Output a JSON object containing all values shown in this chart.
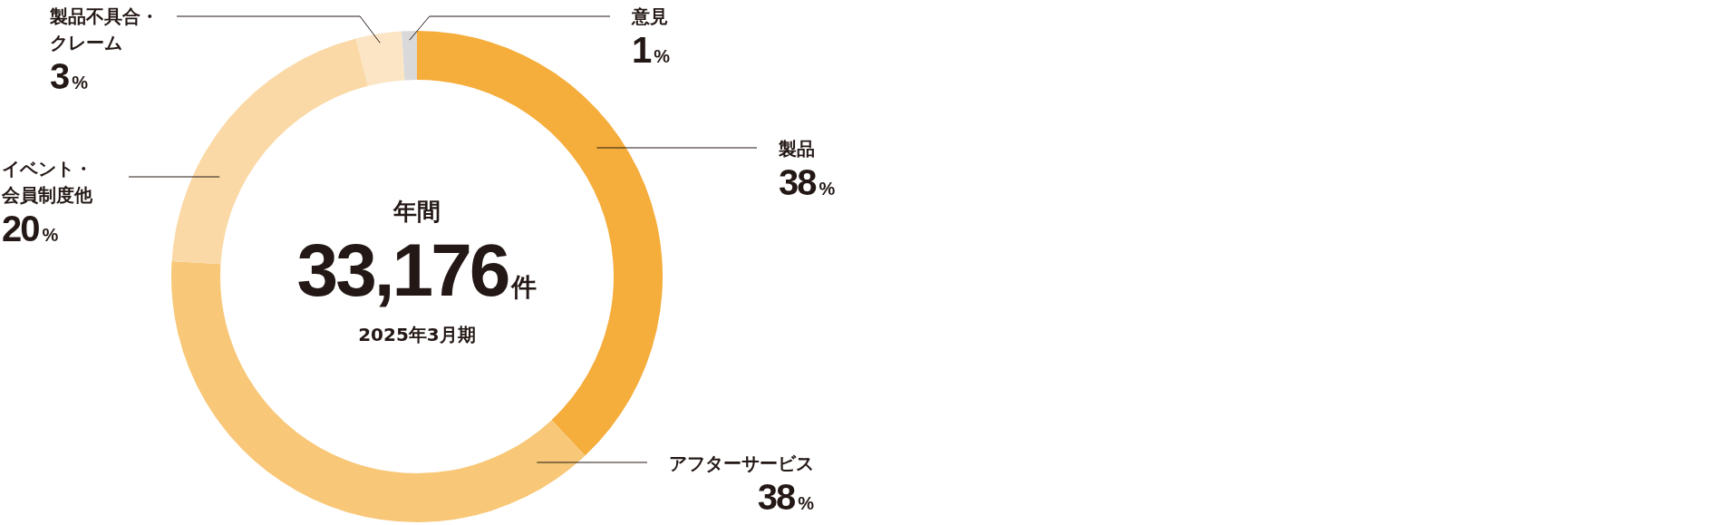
{
  "chart_data": {
    "type": "donut",
    "title": "年間",
    "subtitle": "2025年3月期",
    "annotations": [
      "33,176件"
    ],
    "categories": [
      "製品",
      "アフターサービス",
      "イベント・会員制度他",
      "製品不具合・クレーム",
      "意見"
    ],
    "values": [
      38,
      38,
      20,
      3,
      1
    ],
    "value_labels": [
      "38%",
      "38%",
      "20%",
      "3%",
      "1%"
    ],
    "colors": [
      "#f5ad3b",
      "#f8c777",
      "#fad9a6",
      "#fbe5c5",
      "#d9d9d9"
    ]
  }
}
